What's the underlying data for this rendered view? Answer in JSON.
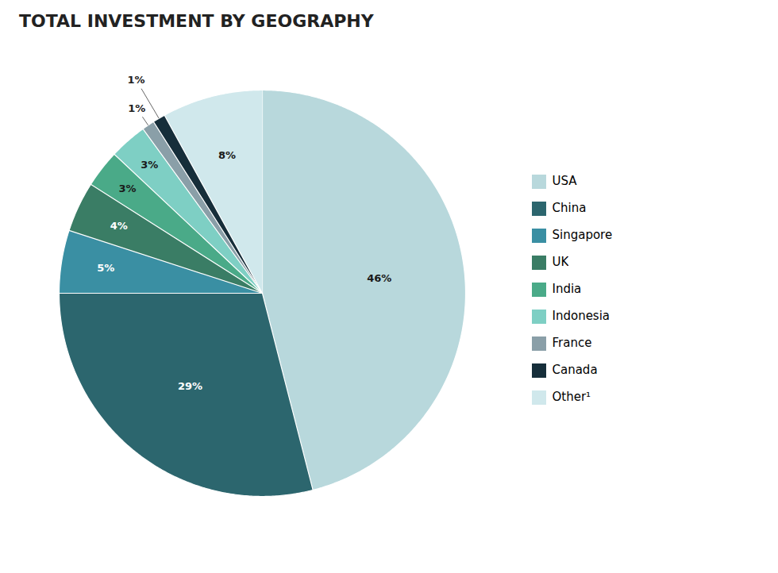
{
  "chart_data": {
    "type": "pie",
    "title": "TOTAL INVESTMENT BY GEOGRAPHY",
    "categories": [
      "USA",
      "China",
      "Singapore",
      "UK",
      "India",
      "Indonesia",
      "France",
      "Canada",
      "Other¹"
    ],
    "values": [
      46,
      29,
      5,
      4,
      3,
      3,
      1,
      1,
      8
    ],
    "value_labels": [
      "46%",
      "29%",
      "5%",
      "4%",
      "3%",
      "3%",
      "1%",
      "1%",
      "8%"
    ],
    "colors": [
      "#b8d8dc",
      "#2c666e",
      "#3a8fa3",
      "#3a7d65",
      "#4aaa88",
      "#7ecfc4",
      "#8a9fa8",
      "#162e3a",
      "#d0e8ec"
    ],
    "data_labels": true,
    "legend": "right"
  }
}
